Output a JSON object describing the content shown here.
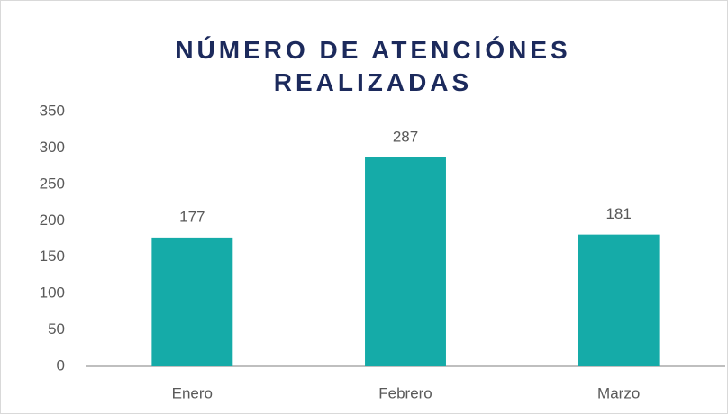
{
  "chart_data": {
    "type": "bar",
    "title": "NÚMERO DE ATENCIÓNES REALIZADAS",
    "categories": [
      "Enero",
      "Febrero",
      "Marzo"
    ],
    "values": [
      177,
      287,
      181
    ],
    "color": "#15aba8",
    "ylim": [
      0,
      350
    ],
    "yticks": [
      0,
      50,
      100,
      150,
      200,
      250,
      300,
      350
    ],
    "grid": false
  }
}
